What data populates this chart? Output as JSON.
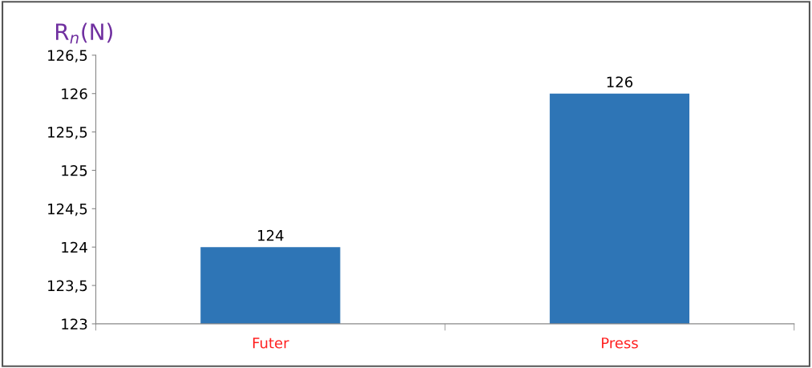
{
  "chart_data": {
    "type": "bar",
    "ylabel": "R$_{n}$(N)",
    "categories": [
      "Futer",
      "Press"
    ],
    "values": [
      124,
      126
    ],
    "color": "#2e75b6",
    "data_labels": true,
    "ylim": [
      123,
      126.5
    ],
    "yticks": [
      123,
      {
        "value": 123.5,
        "label": "123,5"
      },
      124,
      {
        "value": 124.5,
        "label": "124,5"
      },
      125,
      {
        "value": 125.5,
        "label": "125,5"
      },
      126,
      {
        "value": 126.5,
        "label": "126,5"
      }
    ],
    "grid": false,
    "legend": false
  }
}
